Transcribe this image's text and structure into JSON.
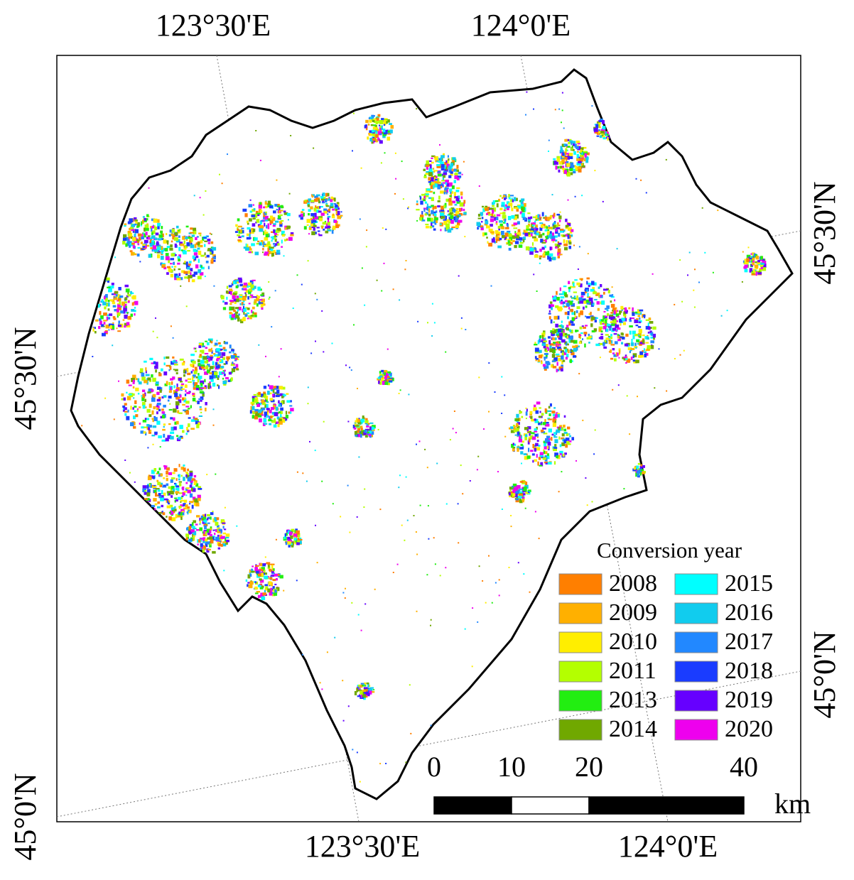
{
  "map": {
    "graticule_labels": {
      "top": [
        "123°30'E",
        "124°0'E"
      ],
      "bottom": [
        "123°30'E",
        "124°0'E"
      ],
      "left": [
        "45°30'N",
        "45°0'N"
      ],
      "right": [
        "45°30'N",
        "45°0'N"
      ]
    },
    "legend": {
      "title": "Conversion year",
      "items": [
        {
          "label": "2008",
          "color": "#ff7f00"
        },
        {
          "label": "2009",
          "color": "#ffb000"
        },
        {
          "label": "2010",
          "color": "#ffee00"
        },
        {
          "label": "2011",
          "color": "#b4ff00"
        },
        {
          "label": "2013",
          "color": "#22ee11"
        },
        {
          "label": "2014",
          "color": "#70a800"
        },
        {
          "label": "2015",
          "color": "#00ffff"
        },
        {
          "label": "2016",
          "color": "#11ccee"
        },
        {
          "label": "2017",
          "color": "#2288ff"
        },
        {
          "label": "2018",
          "color": "#1a3cff"
        },
        {
          "label": "2019",
          "color": "#6600ff"
        },
        {
          "label": "2020",
          "color": "#ee00ee"
        }
      ]
    },
    "scale_bar": {
      "ticks": [
        0,
        10,
        20,
        40
      ],
      "unit": "km"
    }
  }
}
